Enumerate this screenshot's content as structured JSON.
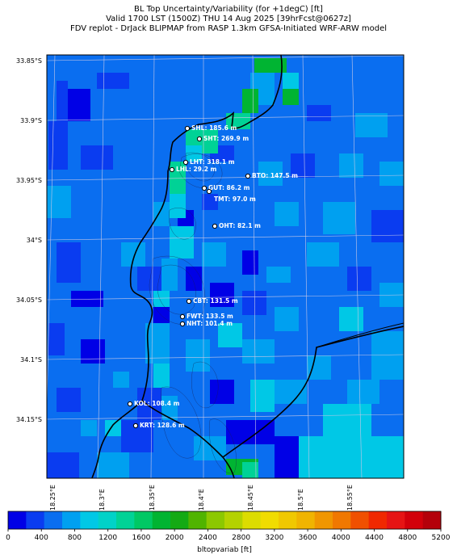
{
  "header": {
    "line1": "BL Top Uncertainty/Variability (for +1degC) [ft]",
    "line2": "Valid 1700 LST (1500Z) THU 14 Aug 2025 [39hrFcst@0627z]",
    "line3": "FDV replot - DrJack BLIPMAP from RASP 1.3km GFSA-Initiated WRF-ARW model"
  },
  "axes": {
    "lat_labels": [
      "33.85°S",
      "33.9°S",
      "33.95°S",
      "34°S",
      "34.05°S",
      "34.1°S",
      "34.15°S"
    ],
    "lon_labels": [
      "18.25°E",
      "18.3°E",
      "18.35°E",
      "18.4°E",
      "18.45°E",
      "18.5°E",
      "18.55°E"
    ]
  },
  "stations": [
    {
      "code": "SHL",
      "label": "SHL: 185.6 m"
    },
    {
      "code": "SHT",
      "label": "SHT: 269.9 m"
    },
    {
      "code": "LHT",
      "label": "LHT: 318.1 m"
    },
    {
      "code": "LHL",
      "label": "LHL: 29.2 m"
    },
    {
      "code": "BTO",
      "label": "BTO: 147.5 m"
    },
    {
      "code": "GUT",
      "label": "GUT: 86.2 m"
    },
    {
      "code": "TMT",
      "label": "TMT: 97.0 m"
    },
    {
      "code": "OHT",
      "label": "OHT: 82.1 m"
    },
    {
      "code": "CBT",
      "label": "CBT: 131.5 m"
    },
    {
      "code": "FWT",
      "label": "FWT: 133.5 m"
    },
    {
      "code": "NHT",
      "label": "NHT: 101.4 m"
    },
    {
      "code": "KOL",
      "label": "KOL: 108.4 m"
    },
    {
      "code": "KRT",
      "label": "KRT: 128.6 m"
    }
  ],
  "colorbar": {
    "label": "bltopvariab [ft]",
    "ticks": [
      "0",
      "400",
      "800",
      "1200",
      "1600",
      "2000",
      "2400",
      "2800",
      "3200",
      "3600",
      "4000",
      "4400",
      "4800",
      "5200"
    ],
    "colors": [
      "#0000e6",
      "#0a3cf0",
      "#0a6ef0",
      "#00a0f0",
      "#00c8e6",
      "#00d2c8",
      "#00d296",
      "#00c864",
      "#00b432",
      "#14aa14",
      "#50b400",
      "#8cc800",
      "#b4d200",
      "#dcdc00",
      "#f0dc00",
      "#f0c800",
      "#f0b400",
      "#f09600",
      "#f07800",
      "#f05000",
      "#f02800",
      "#e61414",
      "#d2000a",
      "#b4000a"
    ]
  },
  "field_colors": {
    "base": "#0a6ef0",
    "low": "#0a3cf0",
    "lowest": "#0000e6",
    "mid": "#00a0f0",
    "cyan": "#00c8e6",
    "teal": "#00d296",
    "green": "#00b432"
  }
}
